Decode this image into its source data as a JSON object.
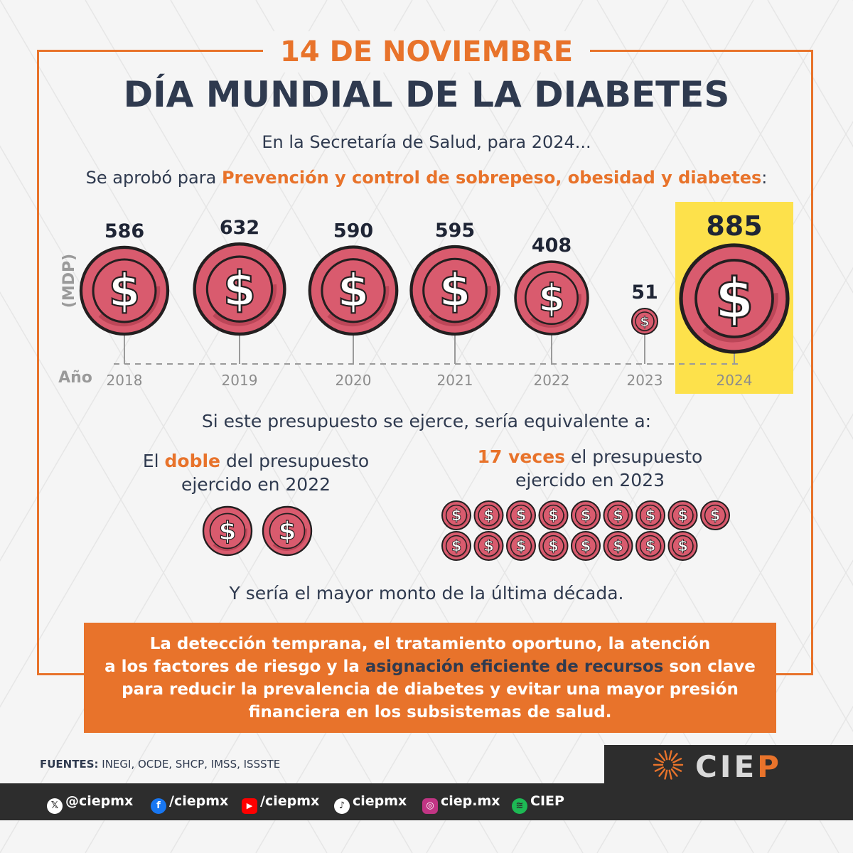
{
  "header": {
    "date": "14 DE NOVIEMBRE",
    "title": "DÍA MUNDIAL DE LA DIABETES"
  },
  "intro": {
    "line1": "En la Secretaría de Salud, para 2024...",
    "line2_pre": "Se aprobó para ",
    "line2_highlight": "Prevención y control de sobrepeso, obesidad y diabetes",
    "line2_post": ":"
  },
  "chart_data": {
    "type": "scatter",
    "title": "",
    "ylabel": "(MDP)",
    "xlabel": "Año",
    "categories": [
      "2018",
      "2019",
      "2020",
      "2021",
      "2022",
      "2023",
      "2024"
    ],
    "values": [
      586,
      632,
      590,
      595,
      408,
      51,
      885
    ],
    "value_labels": [
      "586",
      "632",
      "590",
      "595",
      "408",
      "51",
      "885"
    ],
    "highlight_category": "2024",
    "marker": "dollar-coin"
  },
  "equivalence": {
    "title": "Si este presupuesto se ejerce, sería equivalente a:",
    "left": {
      "pre": "El ",
      "highlight": "doble",
      "post": " del presupuesto",
      "line2": "ejercido en 2022",
      "coin_count": 2
    },
    "right": {
      "highlight": "17 veces",
      "post": " el presupuesto",
      "line2": "ejercido en 2023",
      "coin_count": 17
    }
  },
  "closing": "Y sería el mayor monto de la última década.",
  "callout": {
    "line1": "La detección temprana, el tratamiento oportuno, la atención",
    "line2_pre": "a los factores de riesgo y la ",
    "line2_highlight": "asignación eficiente de recursos",
    "line2_post": " son clave",
    "line3": "para reducir la prevalencia de diabetes y evitar una mayor presión",
    "line4": "financiera en los subsistemas de salud."
  },
  "sources": {
    "label": "FUENTES:",
    "text": " INEGI, OCDE, SHCP, IMSS, ISSSTE"
  },
  "logo": {
    "text_main": "CIE",
    "text_accent": "P"
  },
  "social": [
    {
      "icon": "x-icon",
      "glyph": "𝕏",
      "handle": "@ciepmx",
      "color": "#2d2d2d"
    },
    {
      "icon": "facebook-icon",
      "glyph": "f",
      "handle": "/ciepmx",
      "color": "#1877f2"
    },
    {
      "icon": "youtube-icon",
      "glyph": "▶",
      "handle": "/ciepmx",
      "color": "#ff0000"
    },
    {
      "icon": "tiktok-icon",
      "glyph": "♪",
      "handle": "ciepmx",
      "color": "#2d2d2d"
    },
    {
      "icon": "instagram-icon",
      "glyph": "◎",
      "handle": "ciep.mx",
      "color": "#c13584"
    },
    {
      "icon": "spotify-icon",
      "glyph": "≋",
      "handle": "CIEP",
      "color": "#1db954"
    }
  ],
  "colors": {
    "orange": "#e8732b",
    "navy": "#2f3a4f",
    "coin": "#d95b6e",
    "coin_dark": "#a8384a",
    "highlight": "#fde14b"
  }
}
